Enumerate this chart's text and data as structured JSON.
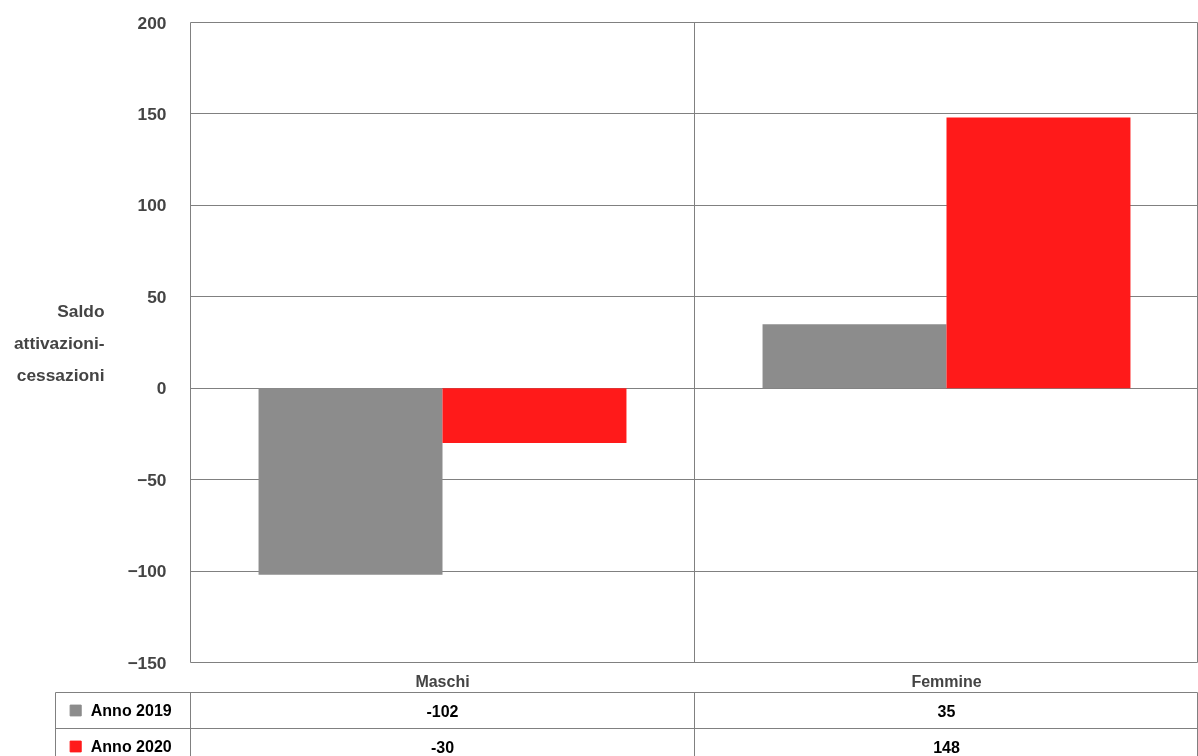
{
  "chart_data": {
    "type": "bar",
    "ylabel": "Saldo\nattivazioni-\ncessazioni",
    "categories": [
      "Maschi",
      "Femmine"
    ],
    "series": [
      {
        "name": "Anno 2019",
        "color": "#8c8c8c",
        "values": [
          -102,
          35
        ]
      },
      {
        "name": "Anno 2020",
        "color": "#ff1a1a",
        "values": [
          -30,
          148
        ]
      }
    ],
    "ylim": [
      -150,
      200
    ],
    "yticks": [
      -150,
      -100,
      -50,
      0,
      50,
      100,
      150,
      200
    ],
    "grid": true,
    "legend": "bottom",
    "data_labels": true
  }
}
